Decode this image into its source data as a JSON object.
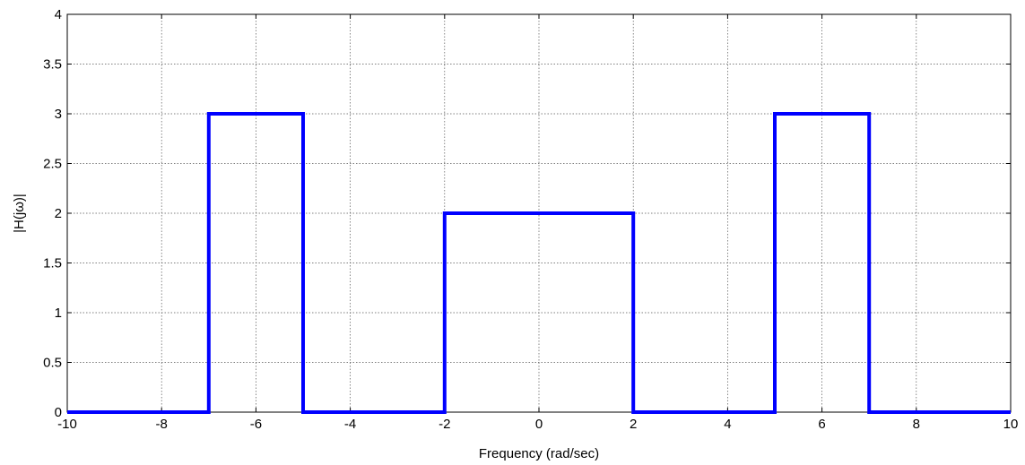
{
  "chart_data": {
    "type": "line",
    "title": "",
    "xlabel": "Frequency (rad/sec)",
    "ylabel": "|H(jω)|",
    "xlim": [
      -10,
      10
    ],
    "ylim": [
      0,
      4
    ],
    "xticks": [
      -10,
      -8,
      -6,
      -4,
      -2,
      0,
      2,
      4,
      6,
      8,
      10
    ],
    "yticks": [
      0,
      0.5,
      1,
      1.5,
      2,
      2.5,
      3,
      3.5,
      4
    ],
    "grid": true,
    "line_color": "#0000ff",
    "series": [
      {
        "x": [
          -10,
          -7,
          -7,
          -5,
          -5,
          -2,
          -2,
          2,
          2,
          5,
          5,
          7,
          7,
          10
        ],
        "y": [
          0,
          0,
          3,
          3,
          0,
          0,
          2,
          2,
          0,
          0,
          3,
          3,
          0,
          0
        ]
      }
    ]
  }
}
